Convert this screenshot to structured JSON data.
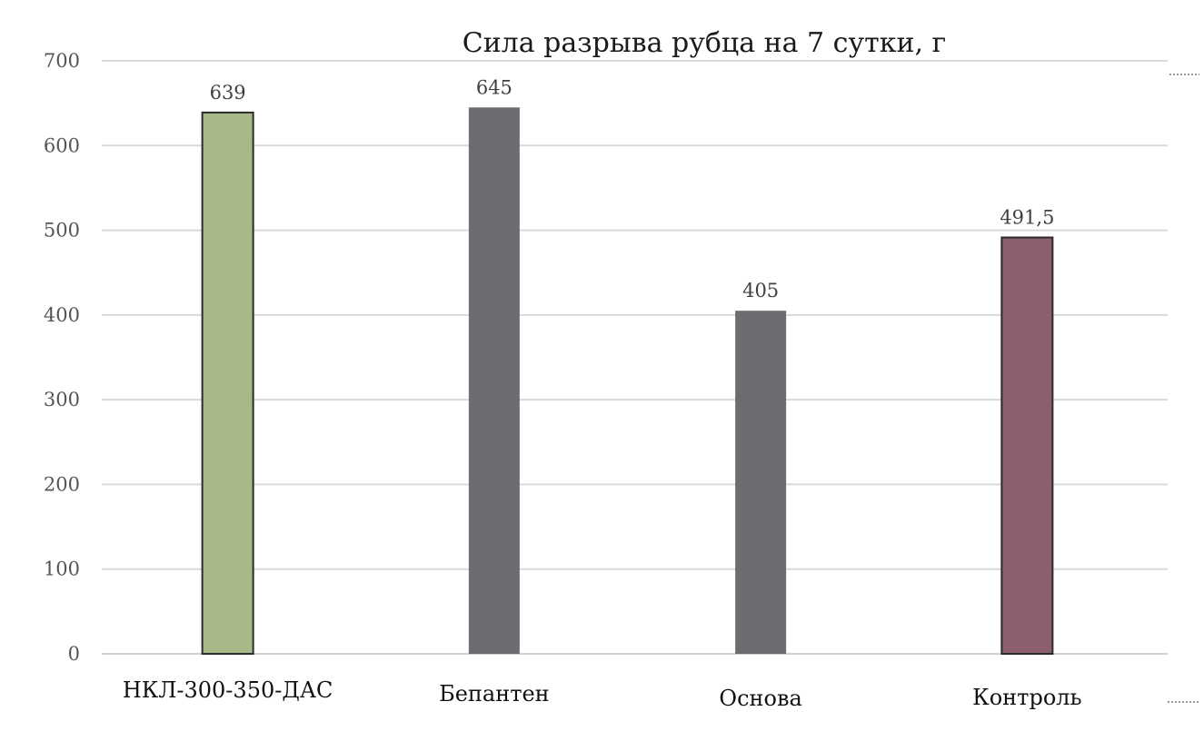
{
  "chart_data": {
    "type": "bar",
    "title": "Сила разрыва рубца на 7 сутки, г",
    "xlabel": "",
    "ylabel": "",
    "ylim": [
      0,
      700
    ],
    "yticks": [
      0,
      100,
      200,
      300,
      400,
      500,
      600,
      700
    ],
    "grid": true,
    "legend": "none",
    "categories": [
      "НКЛ-300-350-ДАС",
      "Бепантен",
      "Основа",
      "Контроль"
    ],
    "values": [
      639,
      645,
      405,
      491.5
    ],
    "data_labels": [
      "639",
      "645",
      "405",
      "491,5"
    ],
    "colors": [
      "#a9b887",
      "#6d6c71",
      "#6d6c71",
      "#8b5f6e"
    ],
    "outlined": [
      true,
      false,
      false,
      true
    ]
  }
}
